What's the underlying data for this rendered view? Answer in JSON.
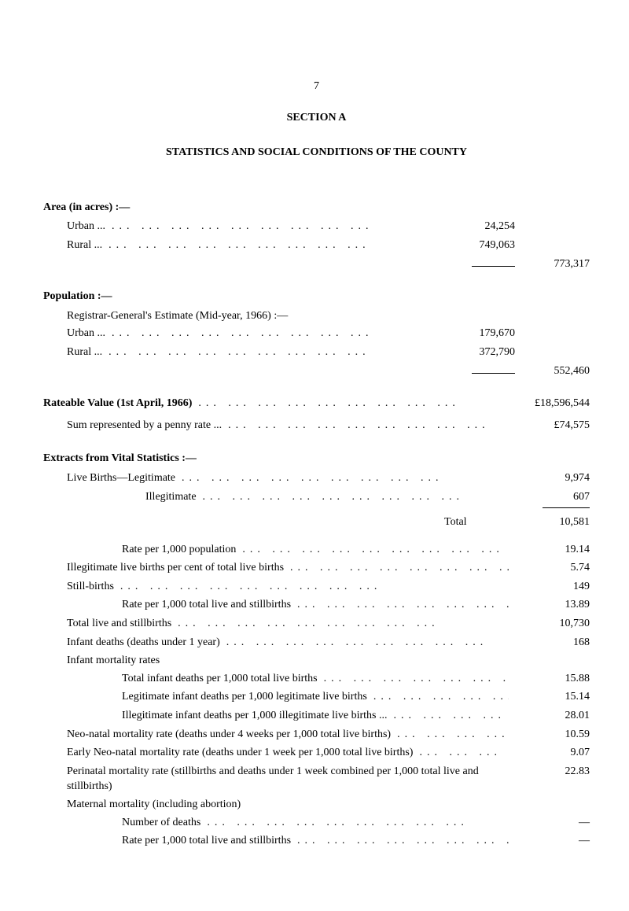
{
  "page_number": "7",
  "section_title": "SECTION A",
  "main_heading": "STATISTICS AND SOCIAL CONDITIONS OF THE COUNTY",
  "area": {
    "heading": "Area (in acres) :—",
    "urban_label": "Urban ...",
    "urban_value": "24,254",
    "rural_label": "Rural ...",
    "rural_value": "749,063",
    "total": "773,317"
  },
  "population": {
    "heading": "Population :—",
    "sub_label": "Registrar-General's Estimate (Mid-year, 1966) :—",
    "urban_label": "Urban ...",
    "urban_value": "179,670",
    "rural_label": "Rural ...",
    "rural_value": "372,790",
    "total": "552,460"
  },
  "rateable": {
    "label": "Rateable Value (1st April, 1966)",
    "value": "£18,596,544",
    "sum_label": "Sum represented by a penny rate ...",
    "sum_value": "£74,575"
  },
  "extracts": {
    "heading": "Extracts from Vital Statistics :—",
    "live_births_line": "Live Births—Legitimate",
    "legitimate_value": "9,974",
    "illegitimate_label": "Illegitimate",
    "illegitimate_value": "607",
    "total_label": "Total",
    "total_value": "10,581",
    "rows": [
      {
        "label": "Rate per 1,000 population",
        "value": "19.14",
        "indent": "2"
      },
      {
        "label": "Illegitimate live births per cent of total live births",
        "value": "5.74",
        "indent": "1"
      },
      {
        "label": "Still-births",
        "value": "149",
        "indent": "1"
      },
      {
        "label": "Rate per 1,000 total live and stillbirths",
        "value": "13.89",
        "indent": "2"
      },
      {
        "label": "Total live and stillbirths",
        "value": "10,730",
        "indent": "1"
      },
      {
        "label": "Infant deaths (deaths under 1 year)",
        "value": "168",
        "indent": "1"
      },
      {
        "label": "Infant mortality rates",
        "value": "",
        "indent": "1"
      },
      {
        "label": "Total infant deaths per 1,000 total live births",
        "value": "15.88",
        "indent": "2"
      },
      {
        "label": "Legitimate infant deaths per 1,000 legitimate live births",
        "value": "15.14",
        "indent": "2"
      },
      {
        "label": "Illegitimate infant deaths per 1,000 illegitimate live births ...",
        "value": "28.01",
        "indent": "2"
      },
      {
        "label": "Neo-natal mortality rate (deaths under 4 weeks per 1,000 total live births)",
        "value": "10.59",
        "indent": "1"
      },
      {
        "label": "Early Neo-natal mortality rate (deaths under 1 week per 1,000 total live births)",
        "value": "9.07",
        "indent": "1"
      }
    ],
    "perinatal": {
      "label": "Perinatal mortality rate (stillbirths and deaths under 1 week combined per 1,000 total live and stillbirths)",
      "value": "22.83"
    },
    "maternal": {
      "heading": "Maternal mortality (including abortion)",
      "deaths_label": "Number of deaths",
      "deaths_value": "—",
      "rate_label": "Rate per 1,000 total live and stillbirths",
      "rate_value": "—"
    }
  },
  "dotfill": "...   ...   ...   ...   ...   ...   ...   ...   ..."
}
